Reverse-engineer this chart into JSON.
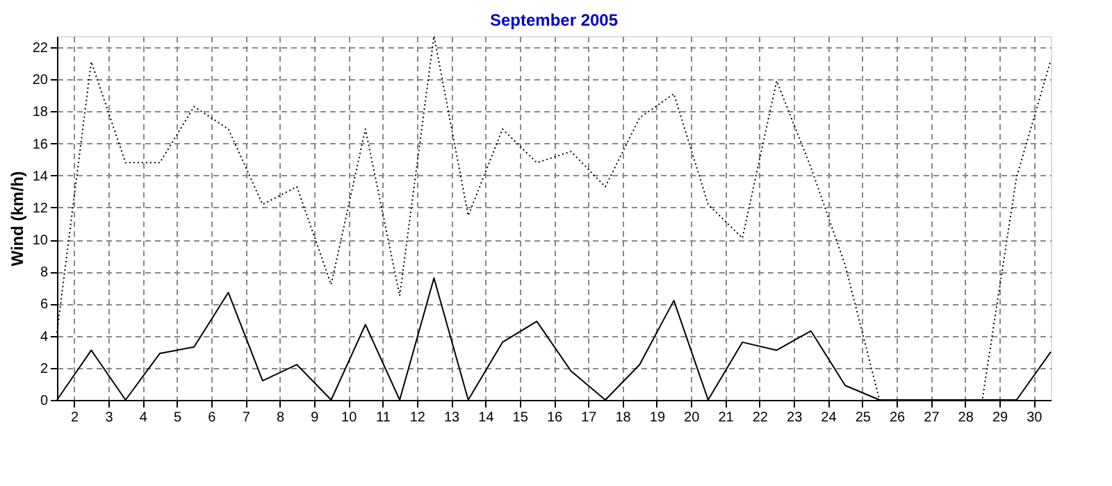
{
  "chart_data": {
    "type": "line",
    "title": "September 2005",
    "ylabel": "Wind  (km/h)",
    "x": [
      1.5,
      2.5,
      3.5,
      4.5,
      5.5,
      6.5,
      7.5,
      8.5,
      9.5,
      10.5,
      11.5,
      12.5,
      13.5,
      14.5,
      15.5,
      16.5,
      17.5,
      18.5,
      19.5,
      20.5,
      21.5,
      22.5,
      23.5,
      24.5,
      25.5,
      26.5,
      27.5,
      28.5,
      29.5,
      30.5
    ],
    "series": [
      {
        "color": "#000000",
        "line_style": "dotted",
        "values": [
          4.2,
          21.1,
          14.8,
          14.8,
          18.3,
          16.9,
          12.2,
          13.3,
          7.2,
          16.9,
          6.5,
          22.7,
          11.5,
          16.9,
          14.8,
          15.5,
          13.3,
          17.6,
          19.1,
          12.2,
          10.1,
          19.9,
          14.5,
          8.4,
          0,
          0,
          0,
          0,
          13.9,
          21.2
        ]
      },
      {
        "color": "#000000",
        "line_style": "solid",
        "values": [
          0,
          3.1,
          0,
          2.9,
          3.3,
          6.7,
          1.2,
          2.2,
          0,
          4.7,
          0,
          7.6,
          0,
          3.6,
          4.9,
          1.8,
          0,
          2.2,
          6.2,
          0,
          3.6,
          3.1,
          4.3,
          0.9,
          0,
          0,
          0,
          0,
          0,
          3.0
        ]
      }
    ],
    "xlim": [
      1.5,
      30.5
    ],
    "xticks": [
      2,
      3,
      4,
      5,
      6,
      7,
      8,
      9,
      10,
      11,
      12,
      13,
      14,
      15,
      16,
      17,
      18,
      19,
      20,
      21,
      22,
      23,
      24,
      25,
      26,
      27,
      28,
      29,
      30
    ],
    "ylim": [
      0,
      22.7
    ],
    "yticks": [
      0,
      2,
      4,
      6,
      8,
      10,
      12,
      14,
      16,
      18,
      20,
      22
    ],
    "grid": true,
    "legend": false,
    "marker": "none"
  }
}
